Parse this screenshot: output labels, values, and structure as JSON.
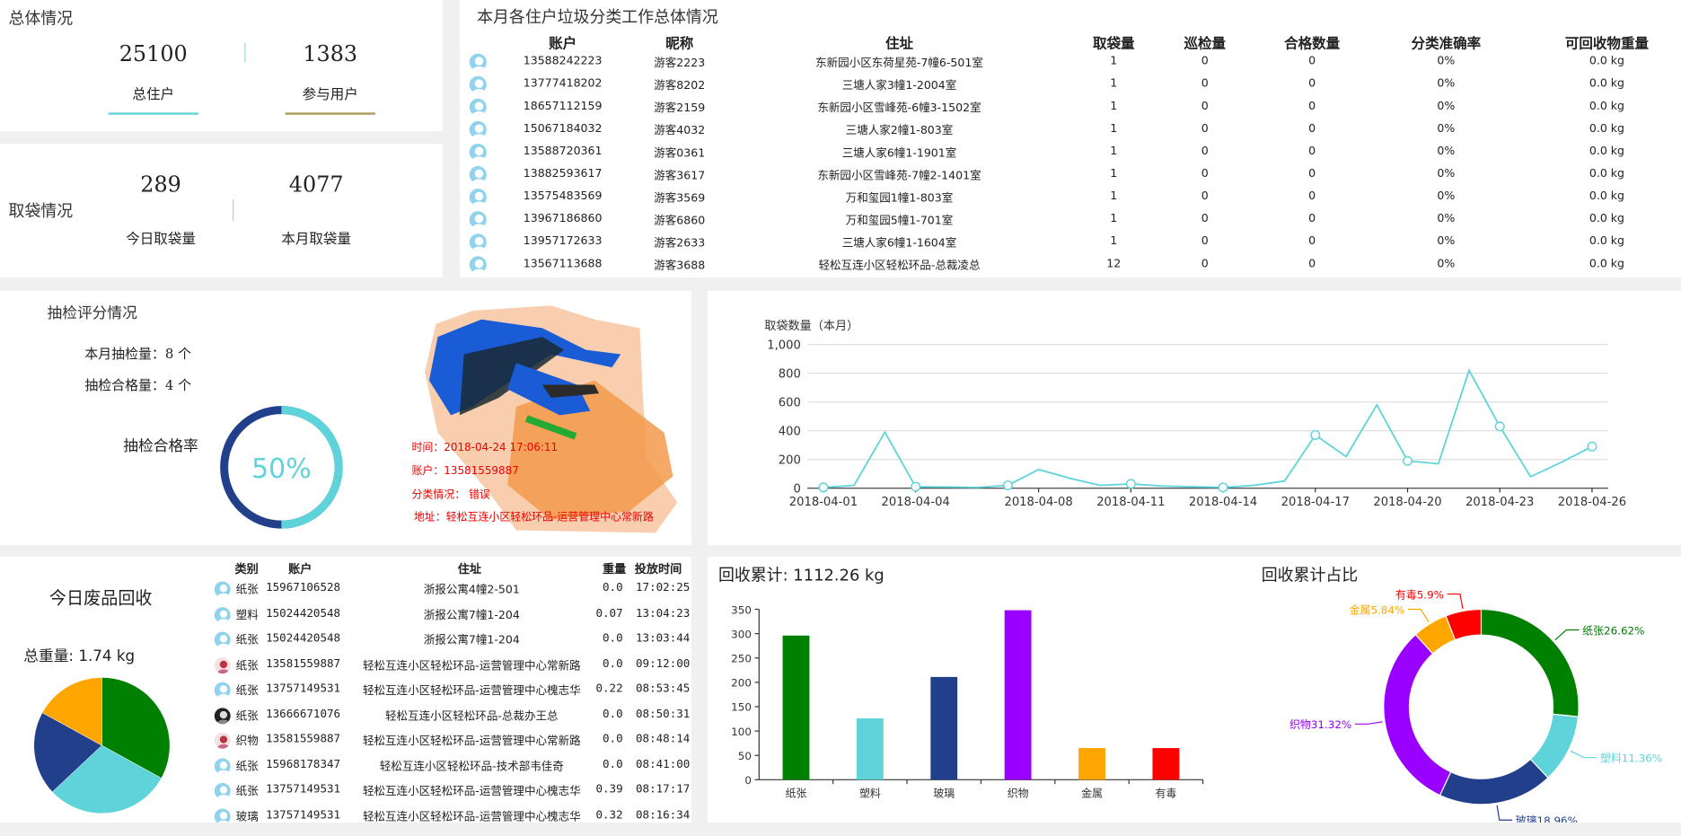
{
  "overall": {
    "title": "总体情况",
    "total_households": "25100",
    "total_households_label": "总住户",
    "participants": "1383",
    "participants_label": "参与用户"
  },
  "bags": {
    "title": "取袋情况",
    "today": "289",
    "today_label": "今日取袋量",
    "month": "4077",
    "month_label": "本月取袋量"
  },
  "household_table": {
    "title": "本月各住户垃圾分类工作总体情况",
    "columns": [
      "账户",
      "昵称",
      "住址",
      "取袋量",
      "巡检量",
      "合格数量",
      "分类准确率",
      "可回收物重量"
    ],
    "rows": [
      [
        "13588242223",
        "游客2223",
        "东新园小区东荷星苑-7幢6-501室",
        "1",
        "0",
        "0",
        "0%",
        "0.0 kg"
      ],
      [
        "13777418202",
        "游客8202",
        "三塘人家3幢1-2004室",
        "1",
        "0",
        "0",
        "0%",
        "0.0 kg"
      ],
      [
        "18657112159",
        "游客2159",
        "东新园小区雪峰苑-6幢3-1502室",
        "1",
        "0",
        "0",
        "0%",
        "0.0 kg"
      ],
      [
        "15067184032",
        "游客4032",
        "三塘人家2幢1-803室",
        "1",
        "0",
        "0",
        "0%",
        "0.0 kg"
      ],
      [
        "13588720361",
        "游客0361",
        "三塘人家6幢1-1901室",
        "1",
        "0",
        "0",
        "0%",
        "0.0 kg"
      ],
      [
        "13882593617",
        "游客3617",
        "东新园小区雪峰苑-7幢2-1401室",
        "1",
        "0",
        "0",
        "0%",
        "0.0 kg"
      ],
      [
        "13575483569",
        "游客3569",
        "万和玺园1幢1-803室",
        "1",
        "0",
        "0",
        "0%",
        "0.0 kg"
      ],
      [
        "13967186860",
        "游客6860",
        "万和玺园5幢1-701室",
        "1",
        "0",
        "0",
        "0%",
        "0.0 kg"
      ],
      [
        "13957172633",
        "游客2633",
        "三塘人家6幢1-1604室",
        "1",
        "0",
        "0",
        "0%",
        "0.0 kg"
      ],
      [
        "13567113688",
        "游客3688",
        "轻松互连小区轻松环品-总裁凌总",
        "12",
        "0",
        "0",
        "0%",
        "0.0 kg"
      ]
    ]
  },
  "inspection": {
    "title": "抽检评分情况",
    "month_count": "本月抽检量：8 个",
    "pass_count": "抽检合格量：4 个",
    "rate_label": "抽检合格率",
    "rate_value": "50%",
    "rate_fraction": 0.5,
    "photo": {
      "time": "时间：2018-04-24 17:06:11",
      "account": "账户：13581559887",
      "result": "分类情况：  错误",
      "address": "地址：轻松互连小区轻松环品-运营管理中心常新路"
    }
  },
  "colors": {
    "teal": "#5ed3da",
    "navy": "#223f8c",
    "green": "#008000",
    "purple": "#9900ff",
    "orange": "#ffa500",
    "red": "#ff0000"
  },
  "chart_data": [
    {
      "type": "line",
      "title": "取袋数量（本月）",
      "x": [
        "2018-04-01",
        "2018-04-02",
        "2018-04-03",
        "2018-04-04",
        "2018-04-05",
        "2018-04-06",
        "2018-04-07",
        "2018-04-08",
        "2018-04-09",
        "2018-04-10",
        "2018-04-11",
        "2018-04-12",
        "2018-04-13",
        "2018-04-14",
        "2018-04-15",
        "2018-04-16",
        "2018-04-17",
        "2018-04-18",
        "2018-04-19",
        "2018-04-20",
        "2018-04-21",
        "2018-04-22",
        "2018-04-23",
        "2018-04-24",
        "2018-04-25",
        "2018-04-26"
      ],
      "values": [
        5,
        20,
        390,
        10,
        8,
        5,
        20,
        130,
        70,
        20,
        30,
        15,
        10,
        5,
        20,
        50,
        370,
        220,
        580,
        190,
        170,
        820,
        430,
        80,
        180,
        290
      ],
      "marked_points": [
        0,
        3,
        6,
        10,
        13,
        16,
        19,
        22,
        25
      ],
      "x_ticks": [
        "2018-04-01",
        "2018-04-04",
        "2018-04-08",
        "2018-04-11",
        "2018-04-14",
        "2018-04-17",
        "2018-04-20",
        "2018-04-23",
        "2018-04-26"
      ],
      "y_ticks": [
        "0",
        "200",
        "400",
        "600",
        "800",
        "1,000"
      ],
      "ylim": [
        0,
        1000
      ],
      "grid": true
    },
    {
      "type": "bar",
      "title": "回收累计: 1112.26 kg",
      "categories": [
        "纸张",
        "塑料",
        "玻璃",
        "织物",
        "金属",
        "有毒"
      ],
      "values": [
        296,
        126,
        211,
        348,
        65,
        65
      ],
      "colors": [
        "#008000",
        "#5ed3da",
        "#223f8c",
        "#9900ff",
        "#ffa500",
        "#ff0000"
      ],
      "y_ticks": [
        "0",
        "50",
        "100",
        "150",
        "200",
        "250",
        "300",
        "350"
      ],
      "ylim": [
        0,
        350
      ]
    },
    {
      "type": "pie",
      "title": "回收累计占比",
      "donut": true,
      "categories": [
        "纸张",
        "塑料",
        "玻璃",
        "织物",
        "金属",
        "有毒"
      ],
      "labels": [
        "纸张26.62%",
        "塑料11.36%",
        "玻璃18.96%",
        "织物31.32%",
        "金属5.84%",
        "有毒5.9%"
      ],
      "values": [
        26.62,
        11.36,
        18.96,
        31.32,
        5.84,
        5.9
      ],
      "colors": [
        "#008000",
        "#5ed3da",
        "#223f8c",
        "#9900ff",
        "#ffa500",
        "#ff0000"
      ]
    },
    {
      "type": "pie",
      "title": "今日废品回收",
      "total_label": "总重量: 1.74 kg",
      "categories": [
        "纸张",
        "塑料",
        "玻璃",
        "金属"
      ],
      "values": [
        33,
        30,
        20,
        17
      ],
      "colors": [
        "#008000",
        "#5ed3da",
        "#223f8c",
        "#ffa500"
      ]
    }
  ],
  "today_recycle": {
    "columns": [
      "类别",
      "账户",
      "住址",
      "重量",
      "投放时间"
    ],
    "rows": [
      {
        "cat": "纸张",
        "acct": "15967106528",
        "addr": "浙报公寓4幢2-501",
        "w": "0.0",
        "t": "17:02:25",
        "av": ""
      },
      {
        "cat": "塑料",
        "acct": "15024420548",
        "addr": "浙报公寓7幢1-204",
        "w": "0.07",
        "t": "13:04:23",
        "av": ""
      },
      {
        "cat": "纸张",
        "acct": "15024420548",
        "addr": "浙报公寓7幢1-204",
        "w": "0.0",
        "t": "13:03:44",
        "av": ""
      },
      {
        "cat": "纸张",
        "acct": "13581559887",
        "addr": "轻松互连小区轻松环品-运营管理中心常新路",
        "w": "0.0",
        "t": "09:12:00",
        "av": "girl"
      },
      {
        "cat": "纸张",
        "acct": "13757149531",
        "addr": "轻松互连小区轻松环品-运营管理中心槐志华",
        "w": "0.22",
        "t": "08:53:45",
        "av": ""
      },
      {
        "cat": "纸张",
        "acct": "13666671076",
        "addr": "轻松互连小区轻松环品-总裁办王总",
        "w": "0.0",
        "t": "08:50:31",
        "av": "dark"
      },
      {
        "cat": "织物",
        "acct": "13581559887",
        "addr": "轻松互连小区轻松环品-运营管理中心常新路",
        "w": "0.0",
        "t": "08:48:14",
        "av": "girl"
      },
      {
        "cat": "纸张",
        "acct": "15968178347",
        "addr": "轻松互连小区轻松环品-技术部韦佳奇",
        "w": "0.0",
        "t": "08:41:00",
        "av": ""
      },
      {
        "cat": "纸张",
        "acct": "13757149531",
        "addr": "轻松互连小区轻松环品-运营管理中心槐志华",
        "w": "0.39",
        "t": "08:17:17",
        "av": ""
      },
      {
        "cat": "玻璃",
        "acct": "13757149531",
        "addr": "轻松互连小区轻松环品-运营管理中心槐志华",
        "w": "0.32",
        "t": "08:16:34",
        "av": ""
      }
    ]
  }
}
